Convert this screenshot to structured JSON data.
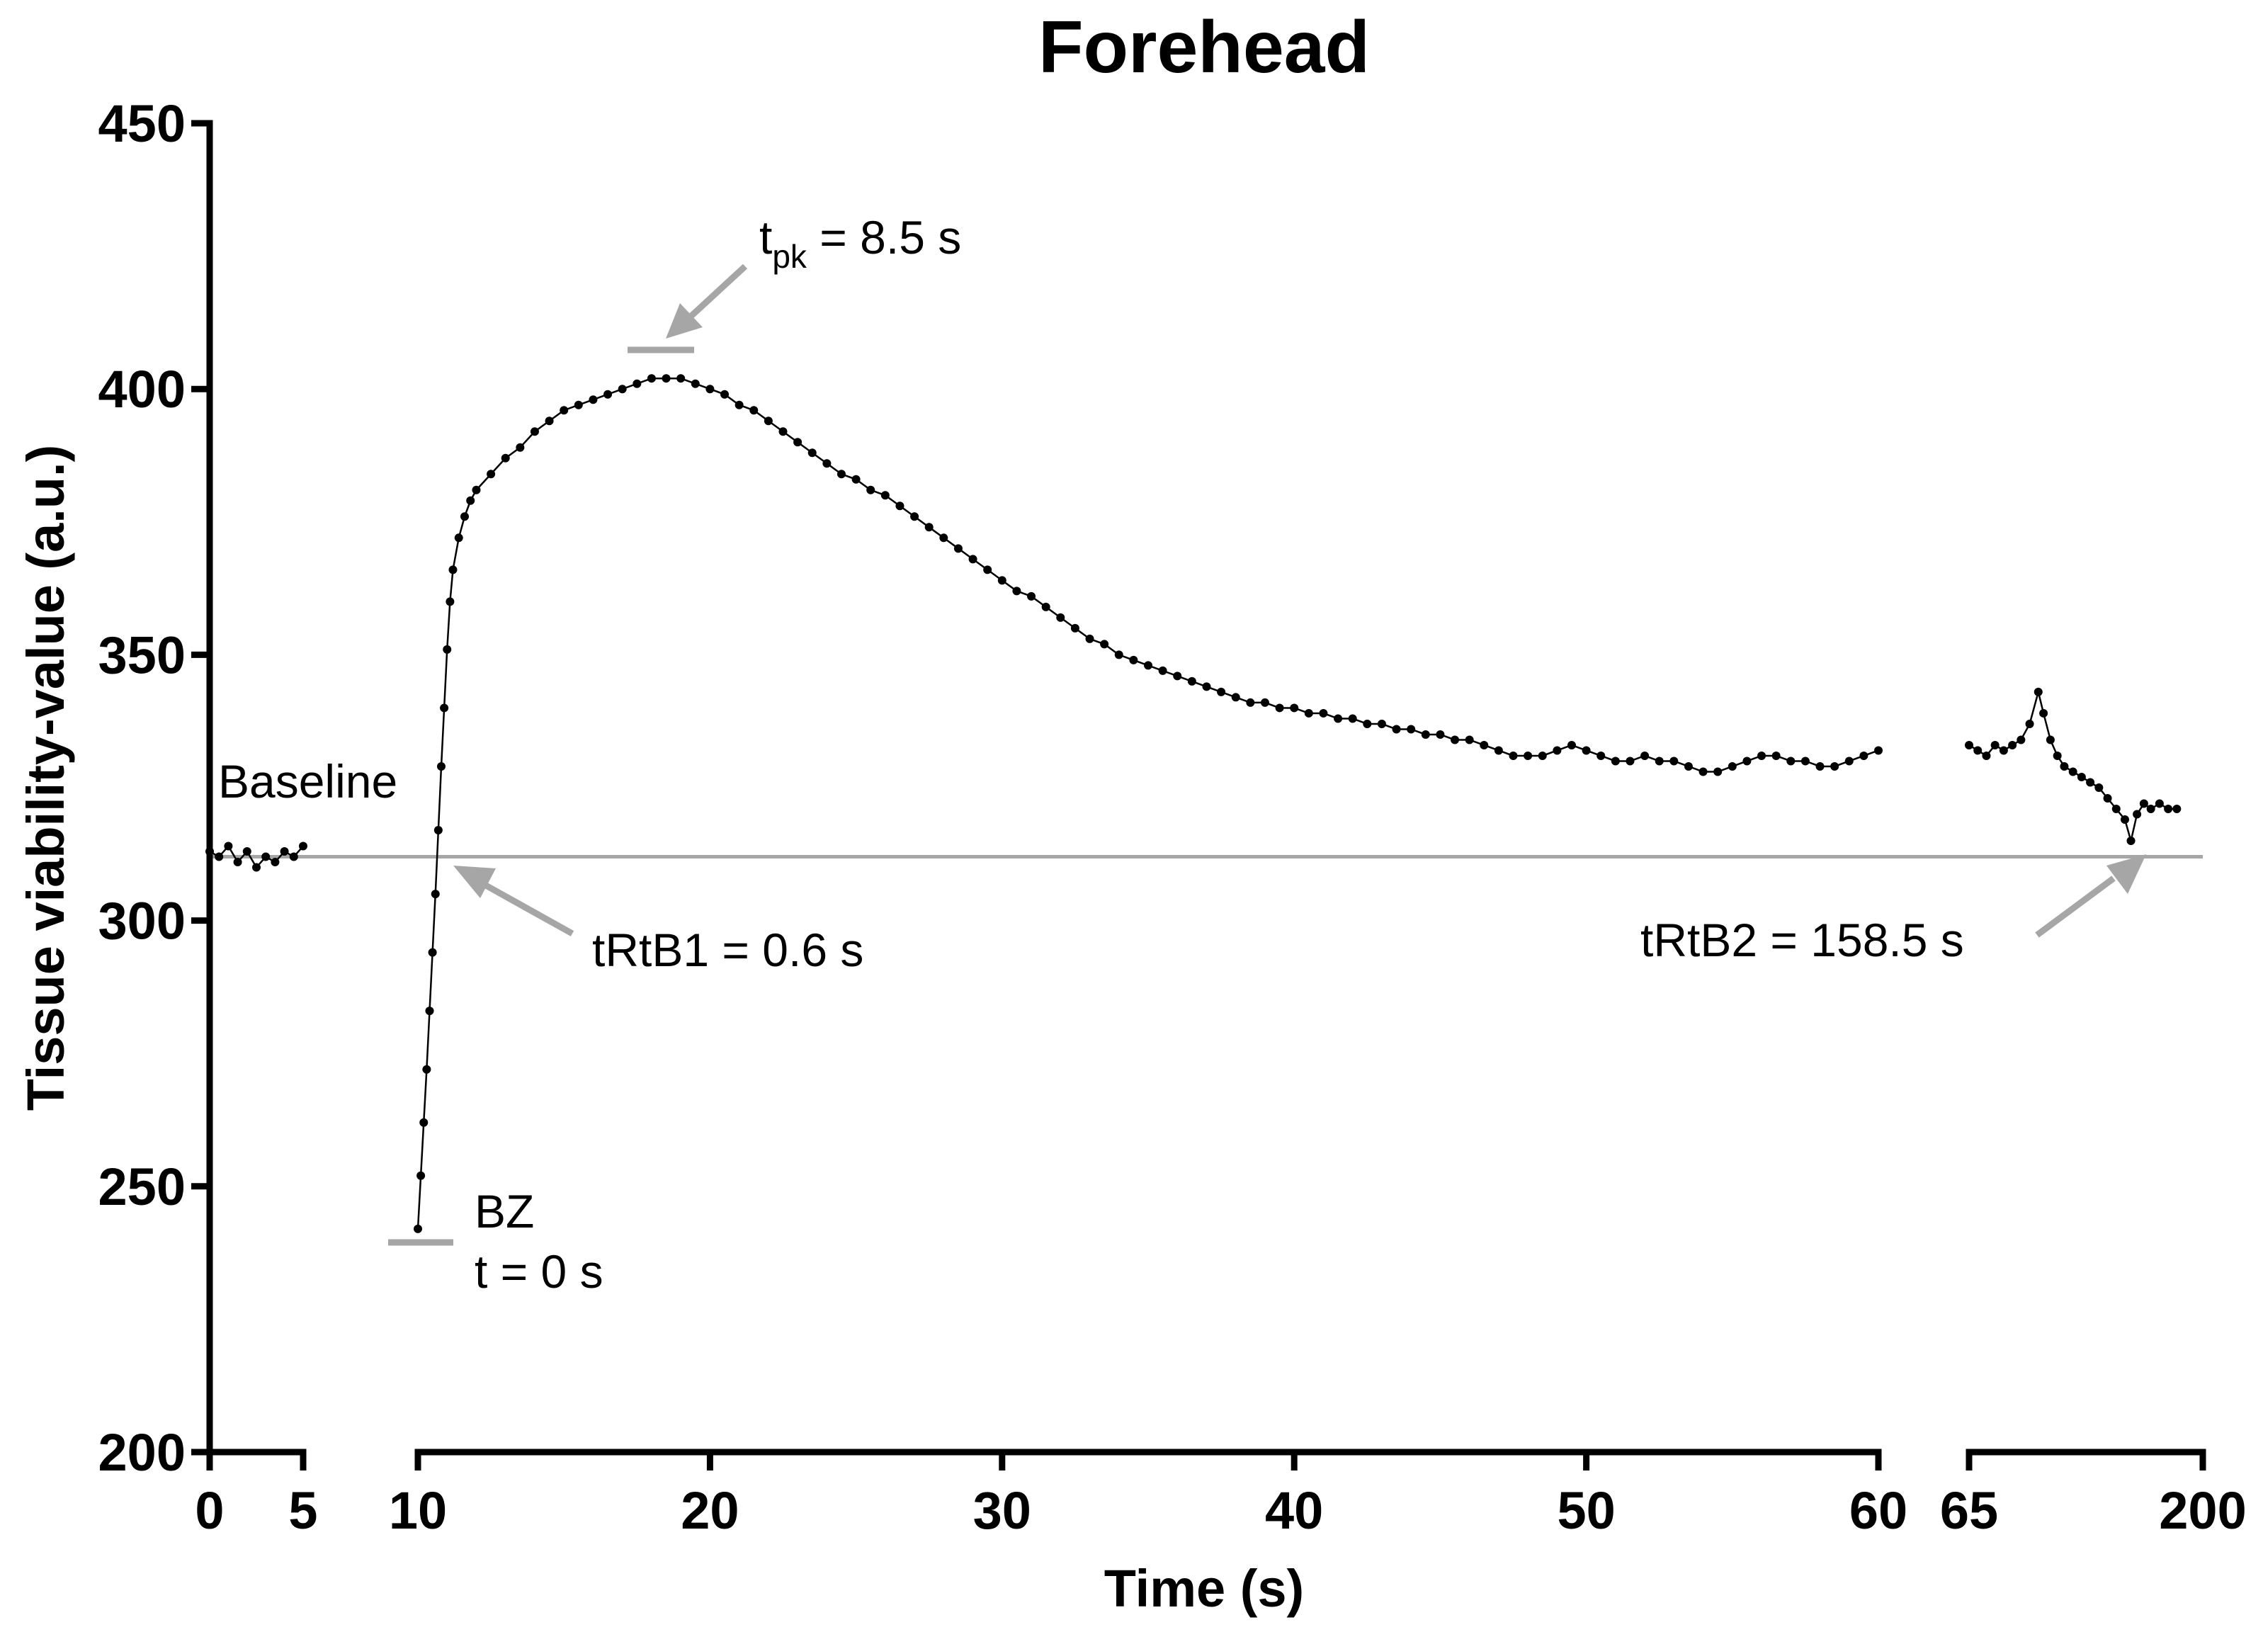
{
  "chart_data": {
    "type": "scatter",
    "title": "Forehead",
    "xlabel": "Time (s)",
    "ylabel": "Tissue viability-value (a.u.)",
    "ylim": [
      200,
      450
    ],
    "yticks": [
      "200",
      "250",
      "300",
      "350",
      "400",
      "450"
    ],
    "x_segments": [
      {
        "range": [
          0,
          5
        ],
        "ticks": [
          "0",
          "5"
        ]
      },
      {
        "range": [
          10,
          60
        ],
        "ticks": [
          "10",
          "20",
          "30",
          "40",
          "50",
          "60"
        ]
      },
      {
        "range": [
          65,
          200
        ],
        "ticks": [
          "65",
          "200"
        ]
      }
    ],
    "baseline_value": 312,
    "series": [
      {
        "segment": 0,
        "points": [
          [
            0,
            313
          ],
          [
            0.5,
            312
          ],
          [
            1,
            314
          ],
          [
            1.5,
            311
          ],
          [
            2,
            313
          ],
          [
            2.5,
            310
          ],
          [
            3,
            312
          ],
          [
            3.5,
            311
          ],
          [
            4,
            313
          ],
          [
            4.5,
            312
          ],
          [
            5,
            314
          ]
        ]
      },
      {
        "segment": 1,
        "points": [
          [
            10,
            242
          ],
          [
            10.1,
            252
          ],
          [
            10.2,
            262
          ],
          [
            10.3,
            272
          ],
          [
            10.4,
            283
          ],
          [
            10.5,
            294
          ],
          [
            10.6,
            305
          ],
          [
            10.7,
            317
          ],
          [
            10.8,
            329
          ],
          [
            10.9,
            340
          ],
          [
            11,
            351
          ],
          [
            11.1,
            360
          ],
          [
            11.2,
            366
          ],
          [
            11.4,
            372
          ],
          [
            11.6,
            376
          ],
          [
            11.8,
            379
          ],
          [
            12,
            381
          ],
          [
            12.5,
            384
          ],
          [
            13,
            387
          ],
          [
            13.5,
            389
          ],
          [
            14,
            392
          ],
          [
            14.5,
            394
          ],
          [
            15,
            396
          ],
          [
            15.5,
            397
          ],
          [
            16,
            398
          ],
          [
            16.5,
            399
          ],
          [
            17,
            400
          ],
          [
            17.5,
            401
          ],
          [
            18,
            402
          ],
          [
            18.5,
            402
          ],
          [
            19,
            402
          ],
          [
            19.5,
            401
          ],
          [
            20,
            400
          ],
          [
            20.5,
            399
          ],
          [
            21,
            397
          ],
          [
            21.5,
            396
          ],
          [
            22,
            394
          ],
          [
            22.5,
            392
          ],
          [
            23,
            390
          ],
          [
            23.5,
            388
          ],
          [
            24,
            386
          ],
          [
            24.5,
            384
          ],
          [
            25,
            383
          ],
          [
            25.5,
            381
          ],
          [
            26,
            380
          ],
          [
            26.5,
            378
          ],
          [
            27,
            376
          ],
          [
            27.5,
            374
          ],
          [
            28,
            372
          ],
          [
            28.5,
            370
          ],
          [
            29,
            368
          ],
          [
            29.5,
            366
          ],
          [
            30,
            364
          ],
          [
            30.5,
            362
          ],
          [
            31,
            361
          ],
          [
            31.5,
            359
          ],
          [
            32,
            357
          ],
          [
            32.5,
            355
          ],
          [
            33,
            353
          ],
          [
            33.5,
            352
          ],
          [
            34,
            350
          ],
          [
            34.5,
            349
          ],
          [
            35,
            348
          ],
          [
            35.5,
            347
          ],
          [
            36,
            346
          ],
          [
            36.5,
            345
          ],
          [
            37,
            344
          ],
          [
            37.5,
            343
          ],
          [
            38,
            342
          ],
          [
            38.5,
            341
          ],
          [
            39,
            341
          ],
          [
            39.5,
            340
          ],
          [
            40,
            340
          ],
          [
            40.5,
            339
          ],
          [
            41,
            339
          ],
          [
            41.5,
            338
          ],
          [
            42,
            338
          ],
          [
            42.5,
            337
          ],
          [
            43,
            337
          ],
          [
            43.5,
            336
          ],
          [
            44,
            336
          ],
          [
            44.5,
            335
          ],
          [
            45,
            335
          ],
          [
            45.5,
            334
          ],
          [
            46,
            334
          ],
          [
            46.5,
            333
          ],
          [
            47,
            332
          ],
          [
            47.5,
            331
          ],
          [
            48,
            331
          ],
          [
            48.5,
            331
          ],
          [
            49,
            332
          ],
          [
            49.5,
            333
          ],
          [
            50,
            332
          ],
          [
            50.5,
            331
          ],
          [
            51,
            330
          ],
          [
            51.5,
            330
          ],
          [
            52,
            331
          ],
          [
            52.5,
            330
          ],
          [
            53,
            330
          ],
          [
            53.5,
            329
          ],
          [
            54,
            328
          ],
          [
            54.5,
            328
          ],
          [
            55,
            329
          ],
          [
            55.5,
            330
          ],
          [
            56,
            331
          ],
          [
            56.5,
            331
          ],
          [
            57,
            330
          ],
          [
            57.5,
            330
          ],
          [
            58,
            329
          ],
          [
            58.5,
            329
          ],
          [
            59,
            330
          ],
          [
            59.5,
            331
          ],
          [
            60,
            332
          ]
        ]
      },
      {
        "segment": 2,
        "points": [
          [
            65,
            333
          ],
          [
            70,
            332
          ],
          [
            75,
            331
          ],
          [
            80,
            333
          ],
          [
            85,
            332
          ],
          [
            90,
            333
          ],
          [
            95,
            334
          ],
          [
            100,
            337
          ],
          [
            105,
            343
          ],
          [
            108,
            339
          ],
          [
            112,
            334
          ],
          [
            116,
            331
          ],
          [
            120,
            329
          ],
          [
            125,
            328
          ],
          [
            130,
            327
          ],
          [
            135,
            326
          ],
          [
            140,
            325
          ],
          [
            145,
            323
          ],
          [
            150,
            321
          ],
          [
            155,
            319
          ],
          [
            158.5,
            315
          ],
          [
            162,
            320
          ],
          [
            166,
            322
          ],
          [
            170,
            321
          ],
          [
            175,
            322
          ],
          [
            180,
            321
          ],
          [
            185,
            321
          ]
        ]
      }
    ],
    "annotations": {
      "baseline": "Baseline",
      "bz_line1": "BZ",
      "bz_line2": "t = 0 s",
      "tpk_main": "t",
      "tpk_sub": "pk",
      "tpk_value": " = 8.5 s",
      "trtb1": "tRtB1 = 0.6 s",
      "trtb2": "tRtB2 = 158.5 s"
    },
    "grid": false,
    "legend": "none"
  }
}
